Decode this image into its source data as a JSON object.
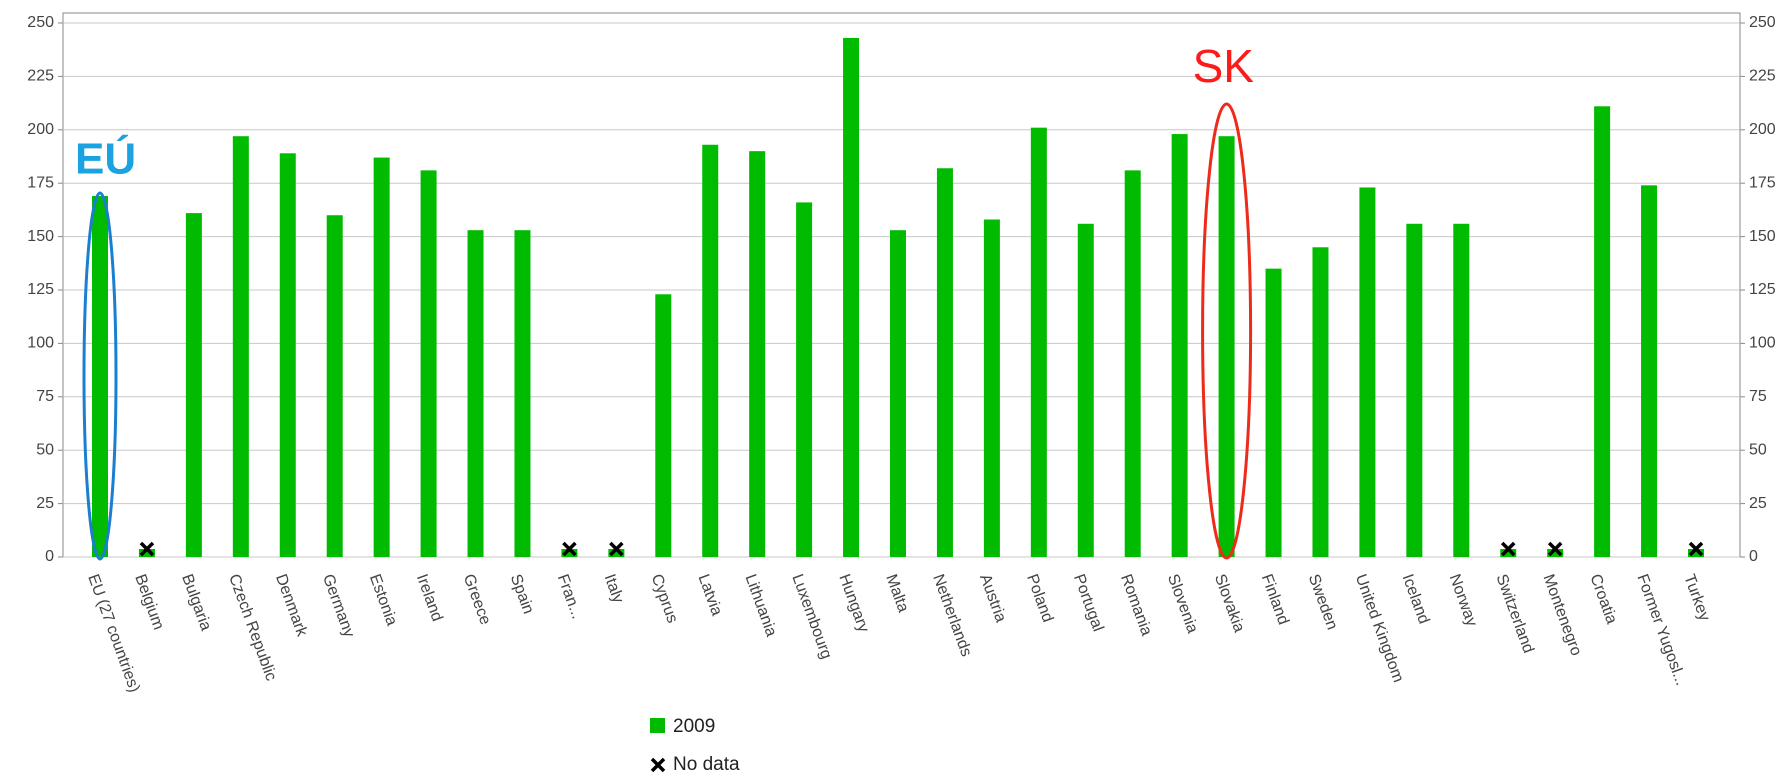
{
  "chart_data": {
    "type": "bar",
    "categories": [
      "EU (27 countries)",
      "Belgium",
      "Bulgaria",
      "Czech Republic",
      "Denmark",
      "Germany",
      "Estonia",
      "Ireland",
      "Greece",
      "Spain",
      "Fran...",
      "Italy",
      "Cyprus",
      "Latvia",
      "Lithuania",
      "Luxembourg",
      "Hungary",
      "Malta",
      "Netherlands",
      "Austria",
      "Poland",
      "Portugal",
      "Romania",
      "Slovenia",
      "Slovakia",
      "Finland",
      "Sweden",
      "United Kingdom",
      "Iceland",
      "Norway",
      "Switzerland",
      "Montenegro",
      "Croatia",
      "Former Yugosl...",
      "Turkey"
    ],
    "series": [
      {
        "name": "2009",
        "color": "#00bb00",
        "values": [
          169,
          null,
          161,
          197,
          189,
          160,
          187,
          181,
          153,
          153,
          null,
          null,
          123,
          193,
          190,
          166,
          243,
          153,
          182,
          158,
          201,
          156,
          181,
          198,
          197,
          135,
          145,
          173,
          156,
          156,
          null,
          null,
          211,
          174,
          null
        ]
      }
    ],
    "no_data_label": "No data",
    "ylim": [
      0,
      250
    ],
    "yticks": [
      0,
      25,
      50,
      75,
      100,
      125,
      150,
      175,
      200,
      225,
      250
    ],
    "grid": true,
    "annotations": [
      {
        "text": "EÚ",
        "color": "#1aa3e0"
      },
      {
        "text": "SK",
        "color": "#ff1a1a"
      }
    ]
  }
}
